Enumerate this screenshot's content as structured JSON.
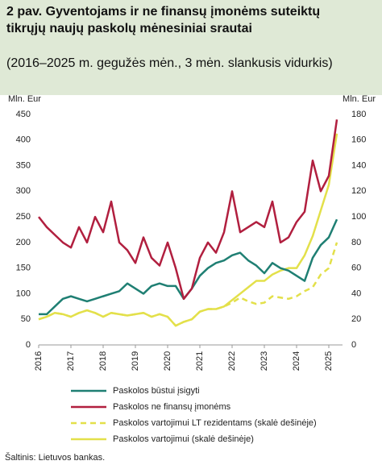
{
  "chart_data": {
    "type": "line",
    "title": "2 pav. Gyventojams ir ne finansų įmonėms suteiktų tikrųjų naujų paskolų mėnesiniai srautai",
    "subtitle": "(2016–2025 m. gegužės mėn., 3 mėn. slankusis vidurkis)",
    "ylabel": "Mln. Eur",
    "y2label": "Mln. Eur",
    "categories": [
      "2016",
      null,
      null,
      null,
      "2017",
      null,
      null,
      null,
      "2018",
      null,
      null,
      null,
      "2019",
      null,
      null,
      null,
      "2020",
      null,
      null,
      null,
      "2021",
      null,
      null,
      null,
      "2022",
      null,
      null,
      null,
      "2023",
      null,
      null,
      null,
      "2024",
      null,
      null,
      null,
      "2025",
      null
    ],
    "ylim": [
      0,
      450
    ],
    "yticks": [
      0,
      50,
      100,
      150,
      200,
      250,
      300,
      350,
      400,
      450
    ],
    "y2lim": [
      0,
      180
    ],
    "y2ticks": [
      0,
      20,
      40,
      60,
      80,
      100,
      120,
      140,
      160,
      180
    ],
    "series": [
      {
        "name": "Paskolos būstui įsigyti",
        "color": "#1f7f73",
        "dashed": false,
        "values": [
          60,
          60,
          75,
          90,
          95,
          90,
          85,
          90,
          95,
          100,
          105,
          120,
          110,
          100,
          115,
          120,
          115,
          115,
          90,
          110,
          135,
          150,
          160,
          165,
          175,
          180,
          165,
          155,
          140,
          160,
          150,
          145,
          135,
          125,
          170,
          195,
          210,
          245
        ]
      },
      {
        "name": "Paskolos ne finansų įmonėms",
        "color": "#b11f3f",
        "dashed": false,
        "values": [
          250,
          230,
          215,
          200,
          190,
          230,
          200,
          250,
          220,
          280,
          200,
          185,
          160,
          210,
          170,
          155,
          200,
          150,
          90,
          110,
          170,
          200,
          180,
          220,
          300,
          220,
          230,
          240,
          230,
          280,
          200,
          210,
          240,
          260,
          360,
          300,
          330,
          440
        ]
      },
      {
        "name": "Paskolos vartojimui LT rezidentams (skalė dešinėje)",
        "color": "#e3e04a",
        "dashed": true,
        "axis": "y2",
        "values": [
          20,
          22,
          25,
          24,
          22,
          25,
          27,
          25,
          22,
          25,
          24,
          23,
          24,
          25,
          22,
          24,
          22,
          15,
          18,
          20,
          26,
          28,
          28,
          30,
          33,
          37,
          34,
          32,
          33,
          38,
          37,
          36,
          38,
          42,
          45,
          55,
          60,
          80
        ]
      },
      {
        "name": "Paskolos vartojimui (skalė dešinėje)",
        "color": "#e3e04a",
        "dashed": false,
        "axis": "y2",
        "values": [
          20,
          22,
          25,
          24,
          22,
          25,
          27,
          25,
          22,
          25,
          24,
          23,
          24,
          25,
          22,
          24,
          22,
          15,
          18,
          20,
          26,
          28,
          28,
          30,
          35,
          40,
          45,
          50,
          50,
          55,
          58,
          60,
          60,
          70,
          85,
          105,
          125,
          165
        ]
      }
    ],
    "source": "Šaltinis: Lietuvos bankas."
  }
}
